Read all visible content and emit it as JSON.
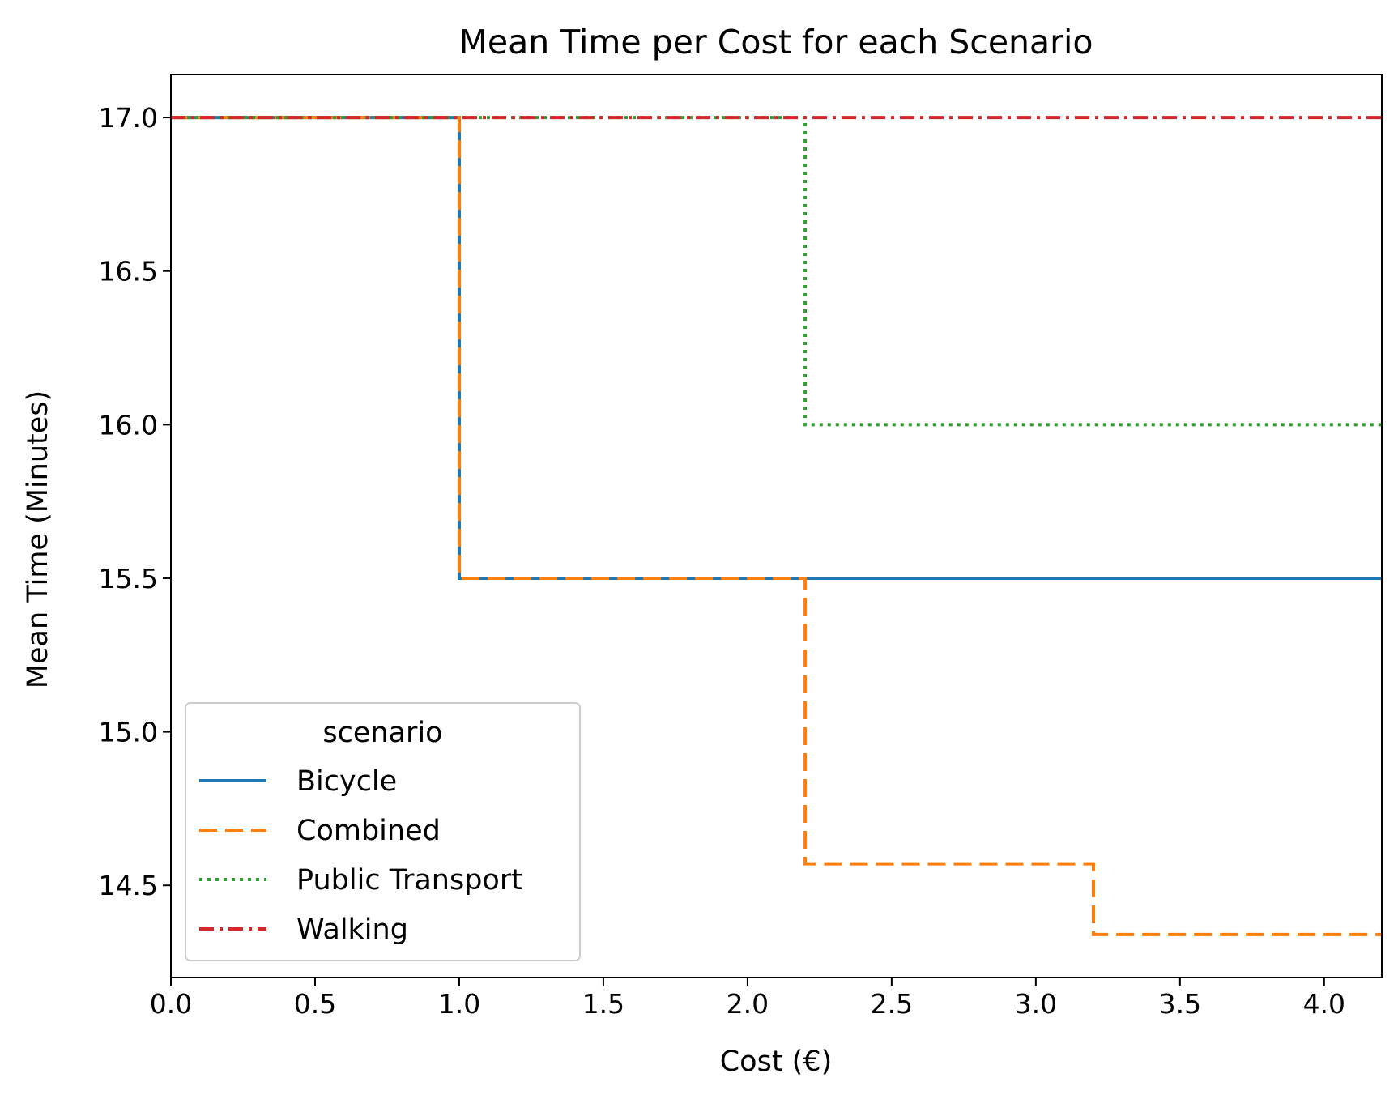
{
  "chart_data": {
    "type": "line",
    "drawstyle": "steps-post",
    "title": "Mean Time per Cost for each Scenario",
    "xlabel": "Cost (€)",
    "ylabel": "Mean Time (Minutes)",
    "xlim": [
      0.0,
      4.2
    ],
    "ylim": [
      14.2,
      17.14
    ],
    "x_ticks": [
      0.0,
      0.5,
      1.0,
      1.5,
      2.0,
      2.5,
      3.0,
      3.5,
      4.0
    ],
    "x_tick_labels": [
      "0.0",
      "0.5",
      "1.0",
      "1.5",
      "2.0",
      "2.5",
      "3.0",
      "3.5",
      "4.0"
    ],
    "y_ticks": [
      14.5,
      15.0,
      15.5,
      16.0,
      16.5,
      17.0
    ],
    "y_tick_labels": [
      "14.5",
      "15.0",
      "15.5",
      "16.0",
      "16.5",
      "17.0"
    ],
    "grid": false,
    "legend": {
      "title": "scenario",
      "placement": "lower-left"
    },
    "series": [
      {
        "name": "Bicycle",
        "color": "#1f77b4",
        "linestyle": "solid",
        "x": [
          0.0,
          1.0,
          4.2
        ],
        "y": [
          17.0,
          15.5,
          15.5
        ]
      },
      {
        "name": "Combined",
        "color": "#ff7f0e",
        "linestyle": "dashed",
        "x": [
          0.0,
          1.0,
          2.2,
          3.2,
          4.2
        ],
        "y": [
          17.0,
          15.5,
          14.57,
          14.34,
          14.34
        ]
      },
      {
        "name": "Public Transport",
        "color": "#2ca02c",
        "linestyle": "dotted",
        "x": [
          0.0,
          2.2,
          4.2
        ],
        "y": [
          17.0,
          16.0,
          16.0
        ]
      },
      {
        "name": "Walking",
        "color": "#d62728",
        "linestyle": "dashdot",
        "x": [
          0.0,
          4.2
        ],
        "y": [
          17.0,
          17.0
        ]
      }
    ]
  }
}
